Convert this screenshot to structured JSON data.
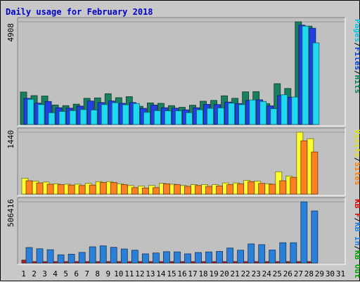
{
  "chart_data": {
    "type": "bar",
    "title": "Daily usage for February 2018",
    "categories": [
      "1",
      "2",
      "3",
      "4",
      "5",
      "6",
      "7",
      "8",
      "9",
      "10",
      "11",
      "12",
      "13",
      "14",
      "15",
      "16",
      "17",
      "18",
      "19",
      "20",
      "21",
      "22",
      "23",
      "24",
      "25",
      "26",
      "27",
      "28",
      "29",
      "30",
      "31"
    ],
    "weekend_days": [
      "3",
      "4",
      "10",
      "11",
      "17",
      "18",
      "24",
      "25",
      "31"
    ],
    "panels": [
      {
        "id": "hits",
        "max_label": "4908",
        "ylim": [
          0,
          4908
        ],
        "legend": [
          {
            "text": "Pages",
            "color": "#00c8e0"
          },
          {
            "text": "/",
            "color": "#000000"
          },
          {
            "text": "Files",
            "color": "#0040e0"
          },
          {
            "text": "/",
            "color": "#000000"
          },
          {
            "text": "Hits",
            "color": "#008060"
          }
        ],
        "series": [
          {
            "name": "Hits",
            "color": "#1a7f5e",
            "values": [
              1550,
              1380,
              1360,
              930,
              900,
              970,
              1250,
              1270,
              1470,
              1280,
              1330,
              870,
              1030,
              1010,
              900,
              820,
              920,
              1110,
              1150,
              1370,
              1250,
              1560,
              1570,
              1000,
              1950,
              1720,
              4908,
              4700,
              0,
              0,
              0
            ]
          },
          {
            "name": "Files",
            "color": "#2040e0",
            "values": [
              1250,
              1020,
              1100,
              800,
              780,
              880,
              1120,
              1050,
              1120,
              1010,
              1050,
              770,
              930,
              800,
              780,
              700,
              800,
              960,
              950,
              1070,
              1000,
              1150,
              1180,
              890,
              1380,
              1300,
              4750,
              4600,
              0,
              0,
              0
            ]
          },
          {
            "name": "Pages",
            "color": "#20d8f0",
            "values": [
              1200,
              950,
              560,
              620,
              660,
              710,
              690,
              950,
              1040,
              940,
              1000,
              580,
              660,
              650,
              650,
              560,
              700,
              770,
              790,
              1020,
              950,
              1170,
              1100,
              750,
              1420,
              1310,
              4700,
              3900,
              0,
              0,
              0
            ]
          }
        ]
      },
      {
        "id": "visits",
        "max_label": "1440",
        "ylim": [
          0,
          1440
        ],
        "legend": [
          {
            "text": "Visits",
            "color": "#e0e000"
          },
          {
            "text": "/",
            "color": "#000000"
          },
          {
            "text": "Sites",
            "color": "#ff7f00"
          }
        ],
        "series": [
          {
            "name": "Visits",
            "color": "#ffff30",
            "values": [
              370,
              300,
              280,
              240,
              230,
              230,
              250,
              290,
              290,
              240,
              200,
              190,
              200,
              250,
              230,
              200,
              220,
              220,
              220,
              260,
              260,
              320,
              300,
              240,
              520,
              420,
              1440,
              1290,
              0,
              0,
              0
            ]
          },
          {
            "name": "Sites",
            "color": "#ff8020",
            "values": [
              310,
              260,
              230,
              220,
              210,
              200,
              210,
              270,
              270,
              220,
              150,
              140,
              150,
              240,
              220,
              180,
              200,
              180,
              190,
              220,
              240,
              290,
              250,
              230,
              310,
              390,
              1240,
              980,
              0,
              0,
              0
            ]
          }
        ]
      },
      {
        "id": "kbytes",
        "max_label": "506416",
        "ylim": [
          0,
          506416
        ],
        "legend": [
          {
            "text": "KB F",
            "color": "#e00000"
          },
          {
            "text": "/",
            "color": "#000000"
          },
          {
            "text": "KB In",
            "color": "#2080e0"
          },
          {
            "text": "/",
            "color": "#000000"
          },
          {
            "text": "KB Out",
            "color": "#00a000"
          }
        ],
        "series": [
          {
            "name": "KB F",
            "color": "#b02020",
            "values": [
              24000,
              6000,
              6000,
              5000,
              5000,
              5000,
              5000,
              5000,
              5000,
              5000,
              5000,
              5000,
              5000,
              5000,
              5000,
              5000,
              5000,
              5000,
              5000,
              5000,
              5000,
              5000,
              5000,
              5000,
              6000,
              6000,
              8000,
              6000,
              0,
              0,
              0
            ]
          },
          {
            "name": "KB In",
            "color": "#2a7fd8",
            "values": [
              128000,
              118000,
              110000,
              68000,
              73000,
              88000,
              134000,
              142000,
              130000,
              116000,
              106000,
              76000,
              83000,
              94000,
              92000,
              76000,
              87000,
              92000,
              96000,
              124000,
              106000,
              158000,
              152000,
              108000,
              168000,
              168000,
              506416,
              431000,
              0,
              0,
              0
            ]
          }
        ]
      }
    ]
  }
}
